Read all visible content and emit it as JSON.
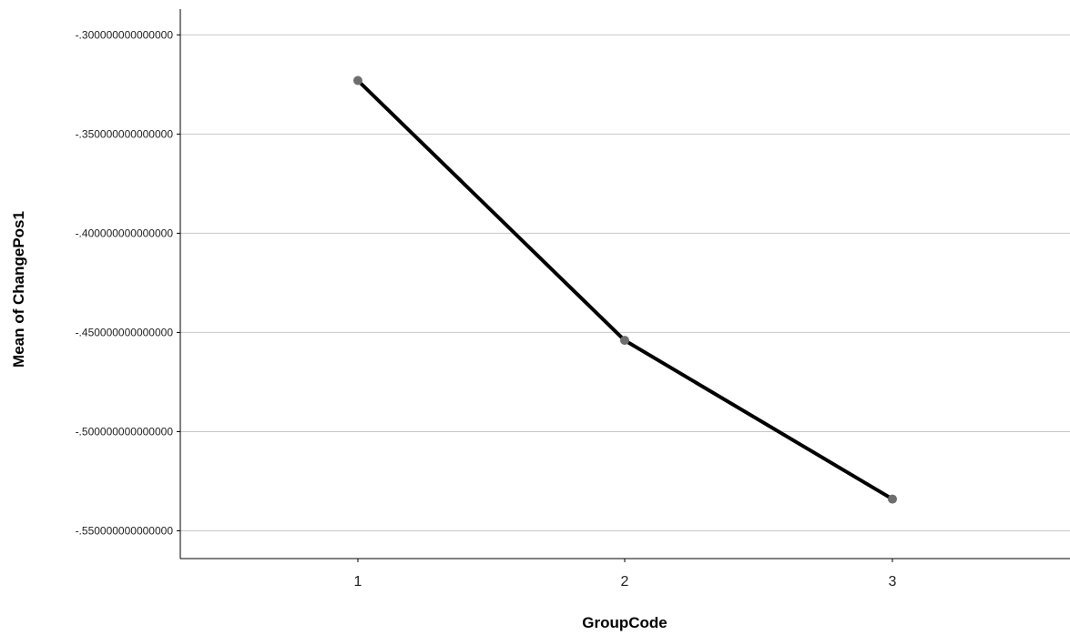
{
  "chart_data": {
    "type": "line",
    "title": "",
    "xlabel": "GroupCode",
    "ylabel": "Mean of ChangePos1",
    "categories": [
      "1",
      "2",
      "3"
    ],
    "series": [
      {
        "values": [
          -0.323,
          -0.454,
          -0.534
        ]
      }
    ],
    "ylim": [
      -0.564,
      -0.287
    ],
    "yticks": [
      -0.3,
      -0.35,
      -0.4,
      -0.45,
      -0.5,
      -0.55
    ],
    "ytick_labels": [
      "-.300000000000000",
      "-.350000000000000",
      "-.400000000000000",
      "-.450000000000000",
      "-.500000000000000",
      "-.550000000000000"
    ],
    "grid": true,
    "line_color": "#000000",
    "marker_color": "#6e6e6e",
    "grid_color": "#c8c8c8",
    "axis_color": "#000000"
  }
}
